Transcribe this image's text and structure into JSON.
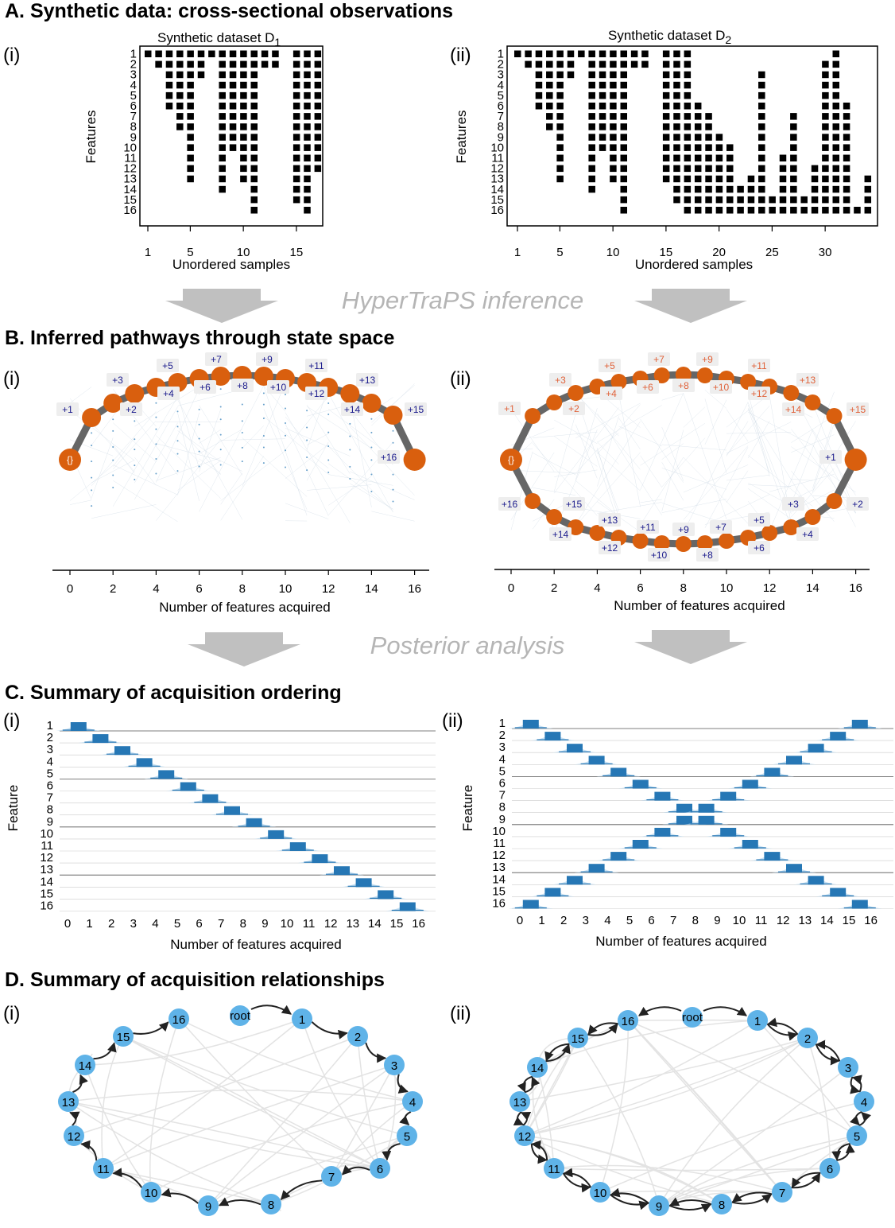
{
  "sections": {
    "A": "A. Synthetic data: cross-sectional observations",
    "B": "B. Inferred pathways through state space",
    "C": "C. Summary of acquisition ordering",
    "D": "D. Summary of acquisition relationships"
  },
  "panel_labels": {
    "i": "(i)",
    "ii": "(ii)"
  },
  "arrow_labels": {
    "inference": "HyperTraPS inference",
    "posterior": "Posterior analysis"
  },
  "colors": {
    "orange": "#d95f0e",
    "blue": "#2677b5",
    "node": "#5fb3e8",
    "gray": "#bdbdbd",
    "pathgray": "#666666",
    "labelblue": "#1a1a8c",
    "labelorange": "#e0623a"
  },
  "panelA": {
    "d1": {
      "title_main": "Synthetic dataset D",
      "title_sub": "1",
      "ylabel": "Features",
      "xlabel": "Unordered samples",
      "xticks": [
        "1",
        "5",
        "10",
        "15"
      ]
    },
    "d2": {
      "title_main": "Synthetic dataset D",
      "title_sub": "2",
      "ylabel": "Features",
      "xlabel": "Unordered samples",
      "xticks": [
        "1",
        "5",
        "10",
        "15",
        "20",
        "25",
        "30"
      ]
    },
    "feature_ticks": [
      "1",
      "2",
      "3",
      "4",
      "5",
      "6",
      "7",
      "8",
      "9",
      "10",
      "11",
      "12",
      "13",
      "14",
      "15",
      "16"
    ]
  },
  "panelB": {
    "xlabel": "Number of features acquired",
    "xticks": [
      "0",
      "2",
      "4",
      "6",
      "8",
      "10",
      "12",
      "14",
      "16"
    ],
    "root": "{}"
  },
  "panelC": {
    "xlabel": "Number of features acquired",
    "ylabel": "Feature",
    "xticks": [
      "0",
      "1",
      "2",
      "3",
      "4",
      "5",
      "6",
      "7",
      "8",
      "9",
      "10",
      "11",
      "12",
      "13",
      "14",
      "15",
      "16"
    ],
    "features": [
      "1",
      "2",
      "3",
      "4",
      "5",
      "6",
      "7",
      "8",
      "9",
      "10",
      "11",
      "12",
      "13",
      "14",
      "15",
      "16"
    ]
  },
  "panelD": {
    "root": "root",
    "nodes": [
      "1",
      "2",
      "3",
      "4",
      "5",
      "6",
      "7",
      "8",
      "9",
      "10",
      "11",
      "12",
      "13",
      "14",
      "15",
      "16"
    ]
  },
  "chart_data": [
    {
      "type": "heatmap",
      "title": "Synthetic dataset D1",
      "xlabel": "Unordered samples",
      "ylabel": "Features",
      "samples": 17,
      "features": 16,
      "presence_by_sample": [
        [
          1
        ],
        [
          1,
          2
        ],
        [
          1,
          2,
          3,
          4,
          5,
          6
        ],
        [
          1,
          2,
          3,
          4,
          5,
          6,
          7,
          8
        ],
        [
          1,
          2,
          3,
          4,
          5,
          6,
          7,
          8,
          9,
          10,
          11,
          12,
          13
        ],
        [
          1,
          2,
          3
        ],
        [
          1
        ],
        [
          1,
          2,
          3,
          4,
          5,
          6,
          7,
          8,
          9,
          10,
          11,
          12,
          13,
          14
        ],
        [
          1,
          2,
          3,
          4,
          5,
          6,
          7,
          8,
          9,
          10
        ],
        [
          1,
          2,
          3,
          4,
          5,
          6,
          7,
          8,
          9,
          10,
          11,
          12,
          13
        ],
        [
          1,
          2,
          3,
          4,
          5,
          6,
          7,
          8,
          9,
          10,
          11,
          12,
          13,
          14,
          15,
          16
        ],
        [
          1,
          2
        ],
        [
          1,
          2
        ],
        [],
        [
          1,
          2,
          3,
          4,
          5,
          6,
          7,
          8,
          9,
          10,
          11,
          12,
          13,
          14,
          15
        ],
        [
          1,
          2,
          3,
          4,
          5,
          6,
          7,
          8,
          9,
          10,
          11,
          12,
          13,
          14,
          15,
          16
        ],
        [
          1,
          2,
          3,
          4,
          5,
          6,
          7,
          8,
          9,
          10,
          11,
          12
        ]
      ]
    },
    {
      "type": "heatmap",
      "title": "Synthetic dataset D2",
      "xlabel": "Unordered samples",
      "ylabel": "Features",
      "samples": 34,
      "features": 16,
      "presence_by_sample": [
        [
          1
        ],
        [
          1,
          2
        ],
        [
          1,
          2,
          3,
          4,
          5,
          6
        ],
        [
          1,
          2,
          3,
          4,
          5,
          6,
          7,
          8
        ],
        [
          1,
          2,
          3,
          4,
          5,
          6,
          7,
          8,
          9,
          10,
          11,
          12,
          13
        ],
        [
          1,
          2,
          3
        ],
        [
          1
        ],
        [
          1,
          2,
          3,
          4,
          5,
          6,
          7,
          8,
          9,
          10,
          11,
          12,
          13,
          14
        ],
        [
          1,
          2,
          3,
          4,
          5,
          6,
          7,
          8,
          9,
          10
        ],
        [
          1,
          2,
          3,
          4,
          5,
          6,
          7,
          8,
          9,
          10,
          11,
          12,
          13
        ],
        [
          1,
          2,
          3,
          4,
          5,
          6,
          7,
          8,
          9,
          10,
          11,
          12,
          13,
          14,
          15,
          16
        ],
        [
          1,
          2
        ],
        [
          1,
          2
        ],
        [],
        [
          1,
          2,
          3,
          4,
          5,
          6,
          7,
          8,
          9,
          10,
          11,
          12,
          13
        ],
        [
          1,
          2,
          3,
          4,
          5,
          6,
          7,
          8,
          9,
          10,
          11,
          12,
          13,
          14,
          15
        ],
        [
          1,
          2,
          3,
          4,
          5,
          6,
          7,
          8,
          9,
          10,
          11,
          12,
          13,
          14,
          15,
          16
        ],
        [
          6,
          7,
          8,
          9,
          10,
          11,
          12,
          13,
          14,
          15,
          16
        ],
        [
          7,
          8,
          9,
          10,
          11,
          12,
          13,
          14,
          15,
          16
        ],
        [
          9,
          10,
          11,
          12,
          13,
          14,
          15,
          16
        ],
        [
          10,
          11,
          12,
          13,
          14,
          15,
          16
        ],
        [
          14,
          15,
          16
        ],
        [
          13,
          14,
          15,
          16
        ],
        [
          3,
          4,
          5,
          6,
          7,
          8,
          9,
          10,
          11,
          12,
          13,
          14,
          15,
          16
        ],
        [
          15,
          16
        ],
        [
          11,
          12,
          13,
          14,
          15,
          16
        ],
        [
          7,
          8,
          9,
          10,
          11,
          12,
          13,
          14,
          15,
          16
        ],
        [
          15,
          16
        ],
        [
          12,
          13,
          14,
          15,
          16
        ],
        [
          2,
          3,
          4,
          5,
          6,
          7,
          8,
          9,
          10,
          11,
          12,
          13,
          14,
          15,
          16
        ],
        [
          1,
          2,
          3,
          4,
          5,
          6,
          7,
          8,
          9,
          10,
          11,
          12,
          13,
          14,
          15,
          16
        ],
        [
          6,
          7,
          8,
          9,
          10,
          11,
          12,
          13,
          14,
          15,
          16
        ],
        [
          16
        ],
        [
          13,
          14,
          15,
          16
        ]
      ]
    },
    {
      "type": "line",
      "title": "Inferred pathways (i)",
      "xlabel": "Number of features acquired",
      "xlim": [
        0,
        16
      ],
      "main_path_order": [
        1,
        2,
        3,
        4,
        5,
        6,
        7,
        8,
        9,
        10,
        11,
        12,
        13,
        14,
        15,
        16
      ]
    },
    {
      "type": "line",
      "title": "Inferred pathways (ii)",
      "xlabel": "Number of features acquired",
      "xlim": [
        0,
        16
      ],
      "upper_path_order": [
        1,
        2,
        3,
        4,
        5,
        6,
        7,
        8,
        9,
        10,
        11,
        12,
        13,
        14,
        15,
        16
      ],
      "lower_path_order": [
        16,
        15,
        14,
        13,
        12,
        11,
        10,
        9,
        8,
        7,
        6,
        5,
        4,
        3,
        2,
        1
      ]
    },
    {
      "type": "bar",
      "title": "Acquisition ordering (i)",
      "xlabel": "Number of features acquired",
      "ylabel": "Feature",
      "modal_step_by_feature": [
        1,
        2,
        3,
        4,
        5,
        6,
        7,
        8,
        9,
        10,
        11,
        12,
        13,
        14,
        15,
        16
      ]
    },
    {
      "type": "bar",
      "title": "Acquisition ordering (ii)",
      "xlabel": "Number of features acquired",
      "ylabel": "Feature",
      "modal_step_by_feature": [
        [
          1,
          16
        ],
        [
          2,
          15
        ],
        [
          3,
          14
        ],
        [
          4,
          13
        ],
        [
          5,
          12
        ],
        [
          6,
          11
        ],
        [
          7,
          10
        ],
        [
          8,
          9
        ],
        [
          8,
          9
        ],
        [
          7,
          10
        ],
        [
          6,
          11
        ],
        [
          5,
          12
        ],
        [
          4,
          13
        ],
        [
          3,
          14
        ],
        [
          2,
          15
        ],
        [
          1,
          16
        ]
      ]
    }
  ]
}
